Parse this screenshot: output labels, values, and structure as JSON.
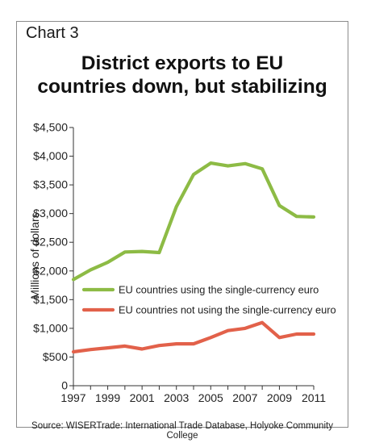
{
  "header": {
    "chart_label": "Chart 3",
    "title_line1": "District exports to EU",
    "title_line2": "countries down, but stabilizing"
  },
  "footer": {
    "source": "Source: WISERTrade: International Trade Database, Holyoke Community College"
  },
  "colors": {
    "euro_series": "#8dbb45",
    "non_euro_series": "#e2614a",
    "axis": "#333333",
    "frame": "#8c8c8c"
  },
  "chart_data": {
    "type": "line",
    "title": "District exports to EU countries down, but stabilizing",
    "xlabel": "",
    "ylabel": "Millions of dollars",
    "xlim": [
      1997,
      2011
    ],
    "ylim": [
      0,
      4500
    ],
    "x_ticks": [
      1997,
      1999,
      2001,
      2003,
      2005,
      2007,
      2009,
      2011
    ],
    "x_tick_labels": [
      "1997",
      "1999",
      "2001",
      "2003",
      "2005",
      "2007",
      "2009",
      "2011"
    ],
    "y_ticks": [
      0,
      500,
      1000,
      1500,
      2000,
      2500,
      3000,
      3500,
      4000,
      4500
    ],
    "y_tick_labels": [
      "0",
      "$500",
      "$1,000",
      "$1,500",
      "$2,000",
      "$2,500",
      "$3,000",
      "$3,500",
      "$4,000",
      "$4,500"
    ],
    "grid": false,
    "legend_position": "center",
    "series": [
      {
        "name": "EU countries using the single-currency euro",
        "color": "#8dbb45",
        "x": [
          1997,
          1998,
          1999,
          2000,
          2001,
          2002,
          2003,
          2004,
          2005,
          2006,
          2007,
          2008,
          2009,
          2010,
          2011
        ],
        "values": [
          1850,
          2020,
          2150,
          2330,
          2340,
          2320,
          3120,
          3680,
          3880,
          3830,
          3870,
          3780,
          3140,
          2950,
          2940
        ]
      },
      {
        "name": "EU countries not using the single-currency euro",
        "color": "#e2614a",
        "x": [
          1997,
          1998,
          1999,
          2000,
          2001,
          2002,
          2003,
          2004,
          2005,
          2006,
          2007,
          2008,
          2009,
          2010,
          2011
        ],
        "values": [
          590,
          630,
          660,
          690,
          640,
          700,
          730,
          730,
          840,
          960,
          1000,
          1100,
          840,
          900,
          900
        ]
      }
    ]
  }
}
